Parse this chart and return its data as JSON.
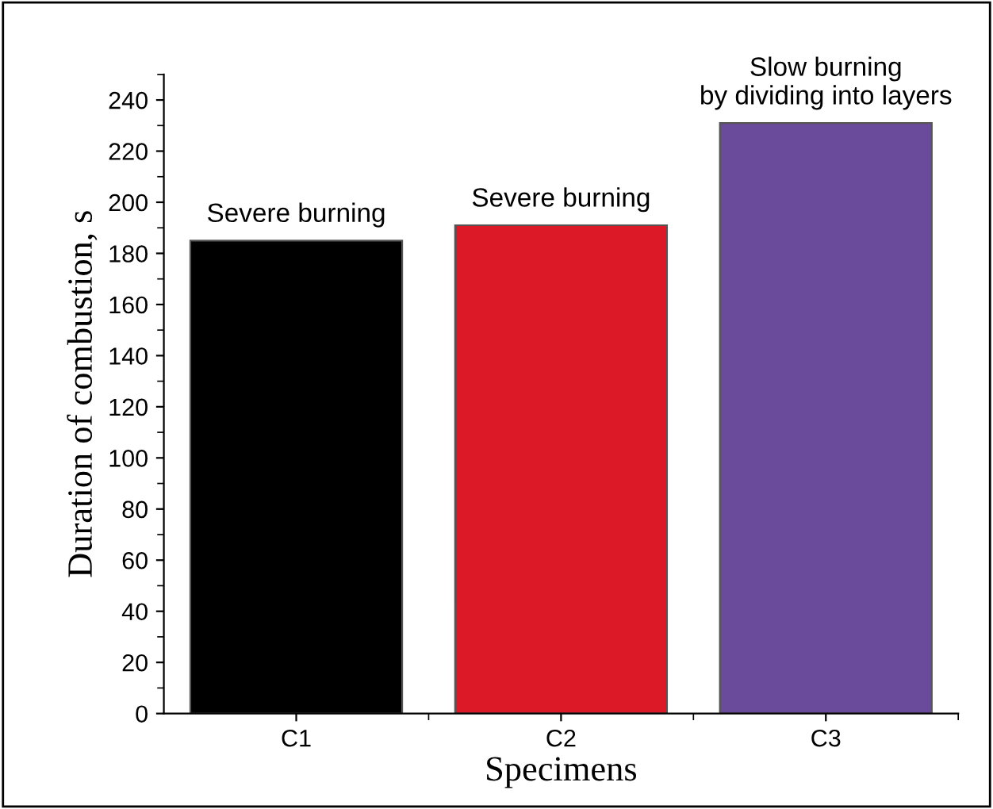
{
  "chart_data": {
    "type": "bar",
    "xlabel": "Specimens",
    "ylabel": "Duration of combustion, s",
    "categories": [
      "C1",
      "C2",
      "C3"
    ],
    "values": [
      185,
      191,
      231
    ],
    "colors": [
      "#000000",
      "#dc1a27",
      "#694a9b"
    ],
    "ylim": [
      0,
      250
    ],
    "yticks": [
      0,
      20,
      40,
      60,
      80,
      100,
      120,
      140,
      160,
      180,
      200,
      220,
      240
    ],
    "annotations": [
      {
        "text": "Severe burning",
        "x": "C1",
        "y": 185
      },
      {
        "text": "Severe burning",
        "x": "C2",
        "y": 191
      },
      {
        "text": "Slow burning\nby dividing into layers",
        "x": "C3",
        "y": 231
      }
    ]
  }
}
